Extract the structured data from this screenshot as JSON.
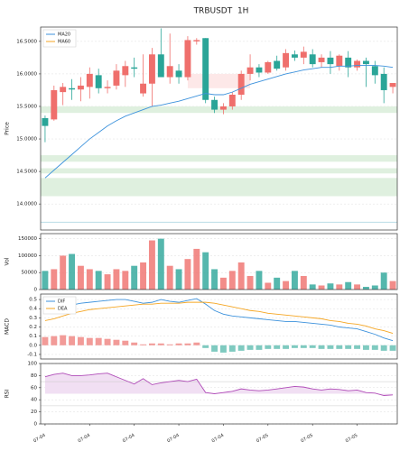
{
  "chart_data": [
    {
      "type": "candlestick",
      "title": "TRBUSDT  1H",
      "ylabel": "Price",
      "open": [
        15.32,
        15.3,
        15.72,
        15.78,
        15.76,
        15.8,
        15.98,
        15.78,
        15.82,
        15.98,
        16.1,
        15.7,
        15.85,
        16.3,
        15.95,
        16.05,
        15.95,
        16.5,
        16.55,
        15.6,
        15.45,
        15.5,
        15.68,
        16.0,
        16.1,
        16.02,
        16.2,
        16.1,
        16.3,
        16.25,
        16.3,
        16.18,
        16.25,
        16.12,
        16.25,
        16.1,
        16.2,
        16.12,
        16.0,
        15.8
      ],
      "high": [
        15.36,
        15.82,
        15.86,
        15.92,
        15.95,
        16.1,
        16.08,
        15.9,
        16.15,
        16.2,
        16.25,
        16.3,
        16.4,
        16.7,
        16.62,
        16.15,
        16.58,
        16.55,
        16.55,
        15.65,
        15.55,
        15.72,
        16.05,
        16.3,
        16.15,
        16.2,
        16.28,
        16.38,
        16.36,
        16.42,
        16.38,
        16.3,
        16.35,
        16.3,
        16.35,
        16.22,
        16.25,
        16.2,
        16.1,
        15.85
      ],
      "low": [
        14.95,
        15.28,
        15.52,
        15.6,
        15.58,
        15.62,
        15.7,
        15.7,
        15.76,
        15.8,
        15.95,
        15.65,
        15.5,
        15.95,
        15.85,
        15.85,
        15.9,
        16.45,
        15.55,
        15.4,
        15.38,
        15.45,
        15.6,
        15.9,
        15.95,
        16.0,
        16.05,
        16.05,
        16.2,
        16.15,
        16.1,
        16.1,
        16.0,
        16.05,
        15.95,
        16.05,
        15.8,
        15.85,
        15.55,
        15.7
      ],
      "close": [
        15.2,
        15.75,
        15.8,
        15.76,
        15.82,
        16.0,
        15.78,
        15.8,
        16.05,
        16.12,
        16.08,
        15.85,
        16.3,
        15.95,
        16.12,
        15.95,
        16.52,
        16.52,
        15.6,
        15.45,
        15.5,
        15.68,
        16.0,
        16.1,
        16.02,
        16.18,
        16.08,
        16.32,
        16.25,
        16.34,
        16.15,
        16.25,
        16.15,
        16.28,
        16.1,
        16.2,
        16.15,
        15.98,
        15.75,
        15.86
      ],
      "up_color": "#ef6f6c",
      "down_color": "#2aa598",
      "series": [
        {
          "name": "MA20",
          "color": "#3d92dc",
          "values": [
            14.4,
            14.52,
            14.64,
            14.76,
            14.88,
            15.0,
            15.1,
            15.2,
            15.28,
            15.35,
            15.4,
            15.45,
            15.5,
            15.52,
            15.55,
            15.58,
            15.62,
            15.66,
            15.7,
            15.68,
            15.68,
            15.72,
            15.78,
            15.84,
            15.88,
            15.92,
            15.96,
            16.0,
            16.03,
            16.06,
            16.08,
            16.1,
            16.1,
            16.12,
            16.12,
            16.13,
            16.13,
            16.13,
            16.12,
            16.1
          ]
        },
        {
          "name": "MA60",
          "color": "#f5a623",
          "values": [
            null,
            null,
            null,
            null,
            null,
            null,
            null,
            null,
            null,
            null,
            null,
            null,
            null,
            null,
            null,
            null,
            null,
            null,
            null,
            null,
            null,
            null,
            null,
            null,
            null,
            null,
            null,
            null,
            null,
            null,
            null,
            null,
            null,
            null,
            null,
            null,
            null,
            null,
            null,
            null
          ]
        }
      ],
      "zones": [
        {
          "low": 15.4,
          "high": 15.5,
          "color": "#dff0df"
        },
        {
          "low": 14.65,
          "high": 14.75,
          "color": "#dff0df"
        },
        {
          "low": 14.47,
          "high": 14.55,
          "color": "#dff0df"
        },
        {
          "low": 14.12,
          "high": 14.4,
          "color": "#dff0df"
        },
        {
          "low": 15.78,
          "high": 16.0,
          "color": "#fde8e8",
          "start": 16,
          "end": 23
        }
      ],
      "hlines": [
        13.72
      ],
      "hline_color": "#b9dde6",
      "ylim": [
        13.6,
        16.72
      ],
      "yticks": [
        {
          "value": 14.0,
          "label": "14.0000"
        },
        {
          "value": 14.5,
          "label": "14.5000"
        },
        {
          "value": 15.0,
          "label": "15.0000"
        },
        {
          "value": 15.5,
          "label": "15.5000"
        },
        {
          "value": 16.0,
          "label": "16.0000"
        },
        {
          "value": 16.5,
          "label": "16.5000"
        }
      ],
      "legend": "upper left"
    },
    {
      "type": "bar",
      "ylabel": "Vol",
      "values": [
        55000,
        60000,
        100000,
        105000,
        70000,
        60000,
        55000,
        45000,
        60000,
        55000,
        70000,
        80000,
        145000,
        150000,
        70000,
        60000,
        90000,
        120000,
        110000,
        60000,
        35000,
        55000,
        80000,
        40000,
        55000,
        20000,
        35000,
        25000,
        55000,
        40000,
        15000,
        12000,
        18000,
        15000,
        22000,
        15000,
        8000,
        12000,
        50000,
        25000
      ],
      "ylim": [
        0,
        165000
      ],
      "yticks": [
        0,
        50000,
        100000,
        150000
      ]
    },
    {
      "type": "macd",
      "ylabel": "MACD",
      "series": [
        {
          "name": "DIF",
          "color": "#3d92dc",
          "values": [
            0.35,
            0.38,
            0.42,
            0.44,
            0.46,
            0.47,
            0.48,
            0.49,
            0.5,
            0.5,
            0.48,
            0.46,
            0.47,
            0.5,
            0.48,
            0.47,
            0.49,
            0.51,
            0.45,
            0.38,
            0.34,
            0.32,
            0.31,
            0.3,
            0.29,
            0.28,
            0.27,
            0.26,
            0.26,
            0.25,
            0.24,
            0.23,
            0.22,
            0.2,
            0.19,
            0.18,
            0.15,
            0.12,
            0.08,
            0.05
          ]
        },
        {
          "name": "DEA",
          "color": "#f5a623",
          "values": [
            0.27,
            0.29,
            0.32,
            0.35,
            0.37,
            0.39,
            0.4,
            0.41,
            0.42,
            0.43,
            0.44,
            0.45,
            0.45,
            0.46,
            0.46,
            0.46,
            0.47,
            0.47,
            0.47,
            0.46,
            0.44,
            0.42,
            0.4,
            0.38,
            0.37,
            0.35,
            0.34,
            0.33,
            0.32,
            0.31,
            0.3,
            0.29,
            0.27,
            0.26,
            0.24,
            0.23,
            0.21,
            0.18,
            0.16,
            0.13
          ]
        }
      ],
      "hist": [
        0.09,
        0.1,
        0.11,
        0.1,
        0.09,
        0.08,
        0.08,
        0.07,
        0.06,
        0.05,
        0.03,
        0.01,
        0.02,
        0.02,
        0.01,
        0.02,
        0.02,
        0.03,
        -0.03,
        -0.07,
        -0.08,
        -0.07,
        -0.06,
        -0.05,
        -0.05,
        -0.04,
        -0.04,
        -0.04,
        -0.03,
        -0.03,
        -0.03,
        -0.04,
        -0.04,
        -0.04,
        -0.04,
        -0.04,
        -0.05,
        -0.05,
        -0.06,
        -0.06
      ],
      "hist_up_color": "#f29b98",
      "hist_down_color": "#7fcac0",
      "ylim": [
        -0.15,
        0.56
      ],
      "yticks": [
        -0.1,
        {
          "value": 0,
          "label": "0.0"
        },
        0.1,
        0.2,
        0.3,
        0.4,
        0.5
      ],
      "legend": "upper left"
    },
    {
      "type": "line",
      "ylabel": "RSI",
      "color": "#b04cb8",
      "fill_color": "#f1dff3",
      "fill_base": 50,
      "values": [
        78,
        82,
        84,
        80,
        80,
        81,
        83,
        84,
        78,
        72,
        66,
        75,
        65,
        68,
        70,
        72,
        70,
        74,
        52,
        50,
        52,
        54,
        58,
        56,
        55,
        56,
        58,
        60,
        62,
        61,
        58,
        56,
        58,
        57,
        55,
        56,
        52,
        51,
        47,
        48
      ],
      "hlines": [
        30,
        70
      ],
      "categories": [
        "07-04",
        null,
        null,
        null,
        null,
        "07-04",
        null,
        null,
        null,
        null,
        "07-04",
        null,
        null,
        null,
        null,
        "07-04",
        null,
        null,
        null,
        null,
        "07-04",
        null,
        null,
        null,
        null,
        "07-05",
        null,
        null,
        null,
        null,
        "07-05",
        null,
        null,
        null,
        null,
        "07-05",
        null,
        null,
        null,
        null
      ],
      "ylim": [
        0,
        100
      ],
      "yticks": [
        0,
        20,
        40,
        60,
        80,
        100
      ]
    }
  ]
}
